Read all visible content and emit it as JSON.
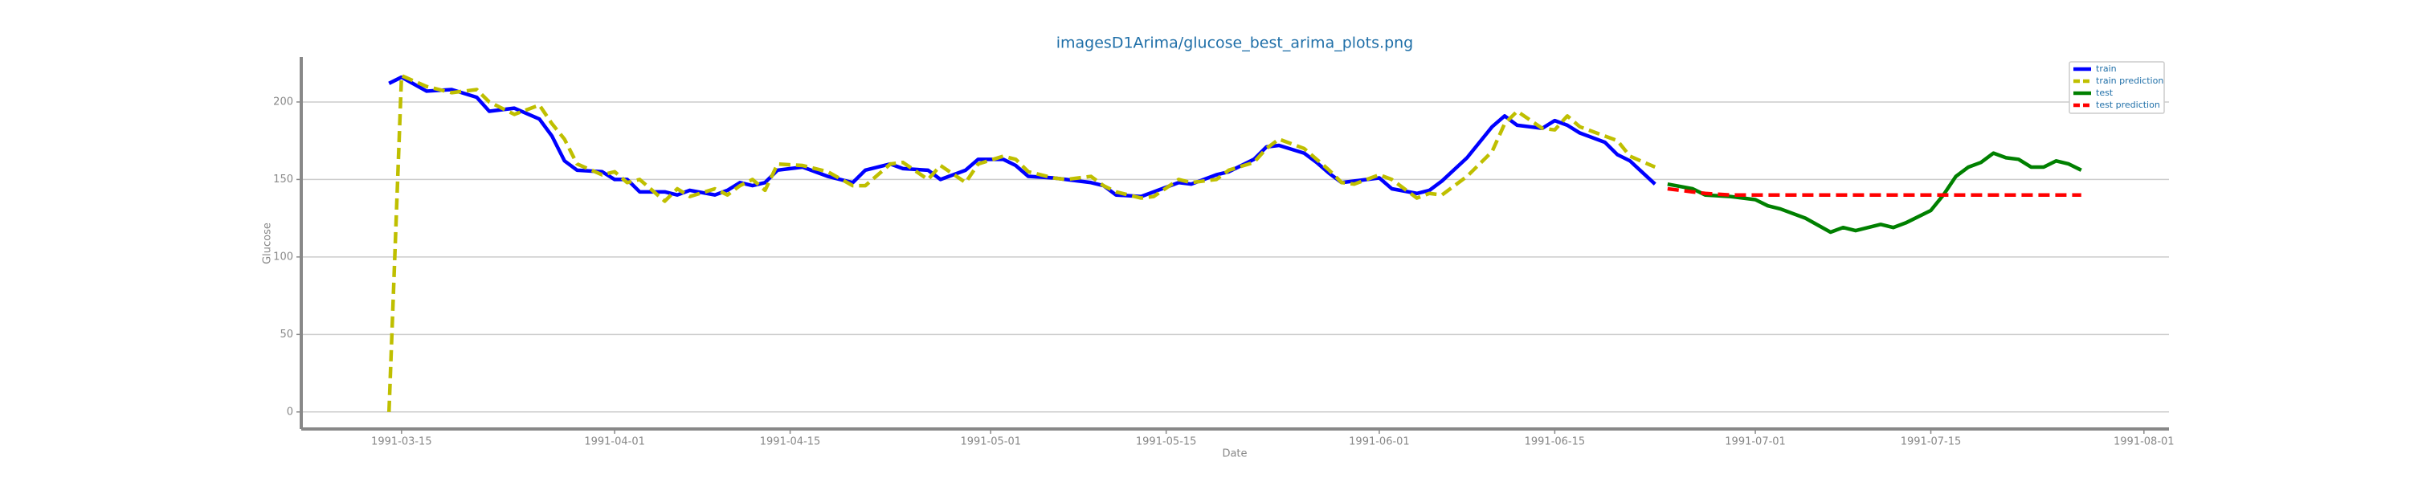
{
  "chart_data": {
    "type": "line",
    "title": "imagesD1Arima/glucose_best_arima_plots.png",
    "xlabel": "Date",
    "ylabel": "Glucose",
    "xlim": [
      "1991-03-07",
      "1991-08-03"
    ],
    "xticks": [
      "1991-03-15",
      "1991-04-01",
      "1991-04-15",
      "1991-05-01",
      "1991-05-15",
      "1991-06-01",
      "1991-06-15",
      "1991-07-01",
      "1991-07-15",
      "1991-08-01"
    ],
    "ylim": [
      -11,
      229
    ],
    "yticks": [
      0,
      50,
      100,
      150,
      200
    ],
    "grid": true,
    "legend": "upper right",
    "series": [
      {
        "name": "train",
        "color": "#0000ff",
        "dashed": false,
        "x": [
          "1991-03-14",
          "1991-03-15",
          "1991-03-17",
          "1991-03-19",
          "1991-03-21",
          "1991-03-22",
          "1991-03-24",
          "1991-03-26",
          "1991-03-27",
          "1991-03-28",
          "1991-03-29",
          "1991-03-31",
          "1991-04-01",
          "1991-04-02",
          "1991-04-03",
          "1991-04-05",
          "1991-04-06",
          "1991-04-07",
          "1991-04-09",
          "1991-04-10",
          "1991-04-11",
          "1991-04-12",
          "1991-04-13",
          "1991-04-14",
          "1991-04-16",
          "1991-04-18",
          "1991-04-20",
          "1991-04-21",
          "1991-04-23",
          "1991-04-24",
          "1991-04-26",
          "1991-04-27",
          "1991-04-29",
          "1991-04-30",
          "1991-05-02",
          "1991-05-03",
          "1991-05-04",
          "1991-05-06",
          "1991-05-07",
          "1991-05-09",
          "1991-05-10",
          "1991-05-11",
          "1991-05-13",
          "1991-05-14",
          "1991-05-16",
          "1991-05-17",
          "1991-05-19",
          "1991-05-20",
          "1991-05-22",
          "1991-05-23",
          "1991-05-24",
          "1991-05-26",
          "1991-05-27",
          "1991-05-28",
          "1991-05-29",
          "1991-05-30",
          "1991-06-01",
          "1991-06-02",
          "1991-06-04",
          "1991-06-05",
          "1991-06-06",
          "1991-06-08",
          "1991-06-10",
          "1991-06-11",
          "1991-06-12",
          "1991-06-14",
          "1991-06-15",
          "1991-06-16",
          "1991-06-17",
          "1991-06-19",
          "1991-06-20",
          "1991-06-21",
          "1991-06-23"
        ],
        "values": [
          212,
          216,
          207,
          208,
          203,
          194,
          196,
          189,
          178,
          162,
          156,
          155,
          150,
          150,
          142,
          142,
          140,
          143,
          140,
          143,
          148,
          146,
          148,
          156,
          158,
          152,
          148,
          156,
          160,
          157,
          156,
          150,
          156,
          163,
          163,
          159,
          152,
          151,
          150,
          148,
          146,
          140,
          139,
          142,
          148,
          147,
          153,
          155,
          163,
          171,
          172,
          167,
          161,
          154,
          148,
          149,
          151,
          144,
          141,
          143,
          149,
          164,
          184,
          191,
          185,
          183,
          188,
          185,
          180,
          174,
          166,
          162,
          147
        ]
      },
      {
        "name": "train prediction",
        "color": "#bfbf00",
        "dashed": true,
        "x": [
          "1991-03-14",
          "1991-03-15",
          "1991-03-17",
          "1991-03-19",
          "1991-03-21",
          "1991-03-22",
          "1991-03-24",
          "1991-03-26",
          "1991-03-27",
          "1991-03-28",
          "1991-03-29",
          "1991-03-31",
          "1991-04-01",
          "1991-04-02",
          "1991-04-03",
          "1991-04-05",
          "1991-04-06",
          "1991-04-07",
          "1991-04-09",
          "1991-04-10",
          "1991-04-11",
          "1991-04-12",
          "1991-04-13",
          "1991-04-14",
          "1991-04-16",
          "1991-04-18",
          "1991-04-20",
          "1991-04-21",
          "1991-04-23",
          "1991-04-24",
          "1991-04-26",
          "1991-04-27",
          "1991-04-29",
          "1991-04-30",
          "1991-05-02",
          "1991-05-03",
          "1991-05-04",
          "1991-05-06",
          "1991-05-07",
          "1991-05-09",
          "1991-05-10",
          "1991-05-11",
          "1991-05-13",
          "1991-05-14",
          "1991-05-16",
          "1991-05-17",
          "1991-05-19",
          "1991-05-20",
          "1991-05-22",
          "1991-05-23",
          "1991-05-24",
          "1991-05-26",
          "1991-05-27",
          "1991-05-28",
          "1991-05-29",
          "1991-05-30",
          "1991-06-01",
          "1991-06-02",
          "1991-06-04",
          "1991-06-05",
          "1991-06-06",
          "1991-06-08",
          "1991-06-10",
          "1991-06-11",
          "1991-06-12",
          "1991-06-14",
          "1991-06-15",
          "1991-06-16",
          "1991-06-17",
          "1991-06-19",
          "1991-06-20",
          "1991-06-21",
          "1991-06-23"
        ],
        "values": [
          0,
          217,
          210,
          206,
          208,
          200,
          192,
          198,
          186,
          176,
          160,
          153,
          155,
          148,
          150,
          136,
          144,
          139,
          144,
          140,
          146,
          150,
          143,
          160,
          159,
          155,
          146,
          146,
          160,
          161,
          150,
          159,
          148,
          160,
          165,
          163,
          155,
          151,
          150,
          152,
          146,
          142,
          138,
          139,
          150,
          148,
          150,
          156,
          161,
          170,
          176,
          170,
          163,
          156,
          148,
          147,
          153,
          150,
          138,
          141,
          140,
          152,
          168,
          186,
          194,
          183,
          182,
          191,
          184,
          178,
          175,
          165,
          158
        ]
      },
      {
        "name": "test",
        "color": "#008000",
        "dashed": false,
        "x": [
          "1991-06-24",
          "1991-06-26",
          "1991-06-27",
          "1991-06-29",
          "1991-07-01",
          "1991-07-02",
          "1991-07-03",
          "1991-07-05",
          "1991-07-07",
          "1991-07-08",
          "1991-07-09",
          "1991-07-11",
          "1991-07-12",
          "1991-07-13",
          "1991-07-15",
          "1991-07-16",
          "1991-07-17",
          "1991-07-18",
          "1991-07-19",
          "1991-07-20",
          "1991-07-21",
          "1991-07-22",
          "1991-07-23",
          "1991-07-24",
          "1991-07-25",
          "1991-07-26",
          "1991-07-27"
        ],
        "values": [
          147,
          144,
          140,
          139,
          137,
          133,
          131,
          125,
          116,
          119,
          117,
          121,
          119,
          122,
          130,
          140,
          152,
          158,
          161,
          167,
          164,
          163,
          158,
          158,
          162,
          160,
          156
        ]
      },
      {
        "name": "test prediction",
        "color": "#ff0000",
        "dashed": true,
        "x": [
          "1991-06-24",
          "1991-06-26",
          "1991-06-27",
          "1991-06-29",
          "1991-07-01",
          "1991-07-02",
          "1991-07-03",
          "1991-07-05",
          "1991-07-07",
          "1991-07-08",
          "1991-07-09",
          "1991-07-11",
          "1991-07-12",
          "1991-07-13",
          "1991-07-15",
          "1991-07-16",
          "1991-07-17",
          "1991-07-18",
          "1991-07-19",
          "1991-07-20",
          "1991-07-21",
          "1991-07-22",
          "1991-07-23",
          "1991-07-24",
          "1991-07-25",
          "1991-07-26",
          "1991-07-27"
        ],
        "values": [
          144,
          142,
          141,
          140,
          140,
          140,
          140,
          140,
          140,
          140,
          140,
          140,
          140,
          140,
          140,
          140,
          140,
          140,
          140,
          140,
          140,
          140,
          140,
          140,
          140,
          140,
          140
        ]
      }
    ]
  }
}
